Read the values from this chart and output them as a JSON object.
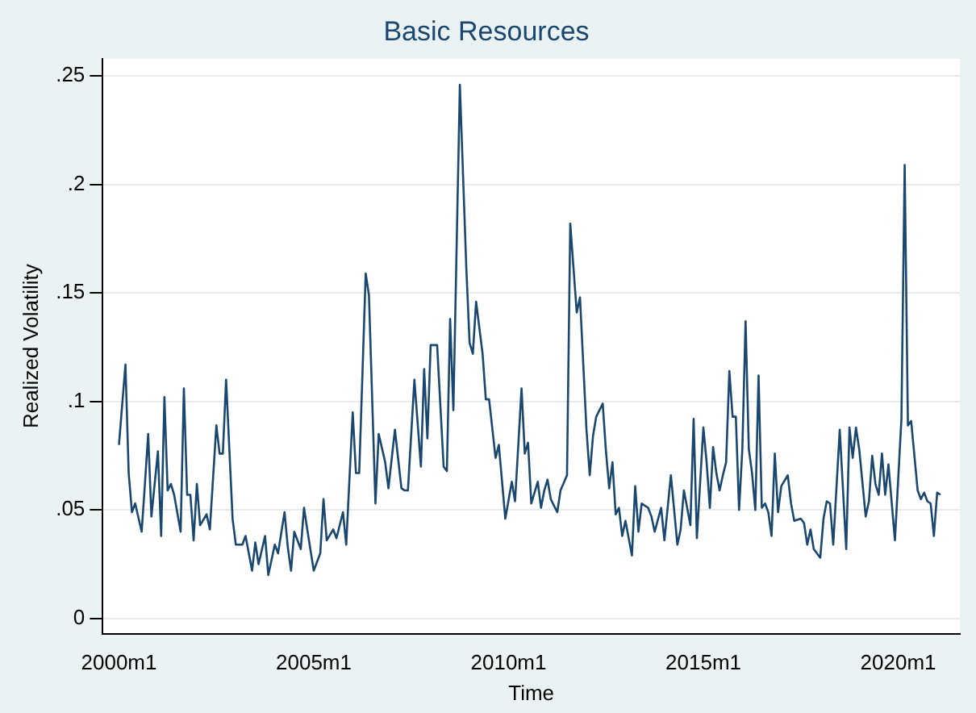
{
  "chart_data": {
    "type": "line",
    "title": "Basic Resources",
    "xlabel": "Time",
    "ylabel": "Realized Volatility",
    "grid": "y",
    "legend": false,
    "marker": "none",
    "line_style": "solid",
    "xlim": [
      "1999-08",
      "2021-08"
    ],
    "ylim": [
      -0.007,
      0.258
    ],
    "xticks": [
      {
        "value": "2000-01",
        "label": "2000m1"
      },
      {
        "value": "2005-01",
        "label": "2005m1"
      },
      {
        "value": "2010-01",
        "label": "2010m1"
      },
      {
        "value": "2015-01",
        "label": "2015m1"
      },
      {
        "value": "2020-01",
        "label": "2020m1"
      }
    ],
    "yticks": [
      0,
      {
        "value": 0.05,
        "label": ".05"
      },
      {
        "value": 0.1,
        "label": ".1"
      },
      {
        "value": 0.15,
        "label": ".15"
      },
      {
        "value": 0.2,
        "label": ".2"
      },
      {
        "value": 0.25,
        "label": ".25"
      }
    ],
    "x": [
      "2000-01",
      "2000-03",
      "2000-04",
      "2000-05",
      "2000-06",
      "2000-08",
      "2000-09",
      "2000-10",
      "2000-11",
      "2001-01",
      "2001-02",
      "2001-03",
      "2001-04",
      "2001-05",
      "2001-06",
      "2001-08",
      "2001-09",
      "2001-10",
      "2001-11",
      "2001-12",
      "2002-01",
      "2002-02",
      "2002-04",
      "2002-05",
      "2002-07",
      "2002-08",
      "2002-09",
      "2002-10",
      "2002-12",
      "2003-01",
      "2003-03",
      "2003-04",
      "2003-06",
      "2003-07",
      "2003-08",
      "2003-10",
      "2003-11",
      "2004-01",
      "2004-02",
      "2004-04",
      "2004-05",
      "2004-06",
      "2004-07",
      "2004-09",
      "2004-10",
      "2004-11",
      "2005-01",
      "2005-03",
      "2005-04",
      "2005-05",
      "2005-07",
      "2005-08",
      "2005-10",
      "2005-11",
      "2006-01",
      "2006-02",
      "2006-03",
      "2006-05",
      "2006-06",
      "2006-08",
      "2006-09",
      "2006-11",
      "2006-12",
      "2007-02",
      "2007-04",
      "2007-05",
      "2007-06",
      "2007-08",
      "2007-10",
      "2007-11",
      "2007-12",
      "2008-01",
      "2008-03",
      "2008-05",
      "2008-06",
      "2008-07",
      "2008-08",
      "2008-10",
      "2008-12",
      "2009-01",
      "2009-02",
      "2009-03",
      "2009-05",
      "2009-06",
      "2009-07",
      "2009-09",
      "2009-10",
      "2009-12",
      "2010-02",
      "2010-03",
      "2010-05",
      "2010-06",
      "2010-07",
      "2010-08",
      "2010-10",
      "2010-11",
      "2010-12",
      "2011-01",
      "2011-02",
      "2011-04",
      "2011-05",
      "2011-07",
      "2011-08",
      "2011-10",
      "2011-11",
      "2012-01",
      "2012-02",
      "2012-03",
      "2012-04",
      "2012-06",
      "2012-07",
      "2012-08",
      "2012-09",
      "2012-10",
      "2012-11",
      "2012-12",
      "2013-01",
      "2013-03",
      "2013-04",
      "2013-05",
      "2013-06",
      "2013-08",
      "2013-09",
      "2013-10",
      "2013-12",
      "2014-01",
      "2014-02",
      "2014-03",
      "2014-05",
      "2014-06",
      "2014-07",
      "2014-09",
      "2014-10",
      "2014-11",
      "2015-01",
      "2015-02",
      "2015-03",
      "2015-04",
      "2015-05",
      "2015-06",
      "2015-07",
      "2015-08",
      "2015-09",
      "2015-10",
      "2015-11",
      "2015-12",
      "2016-01",
      "2016-02",
      "2016-03",
      "2016-04",
      "2016-05",
      "2016-06",
      "2016-07",
      "2016-08",
      "2016-09",
      "2016-10",
      "2016-11",
      "2016-12",
      "2017-01",
      "2017-03",
      "2017-04",
      "2017-05",
      "2017-07",
      "2017-08",
      "2017-09",
      "2017-10",
      "2017-11",
      "2018-01",
      "2018-02",
      "2018-03",
      "2018-04",
      "2018-05",
      "2018-07",
      "2018-09",
      "2018-10",
      "2018-11",
      "2018-12",
      "2019-01",
      "2019-03",
      "2019-04",
      "2019-05",
      "2019-06",
      "2019-07",
      "2019-08",
      "2019-09",
      "2019-10",
      "2019-12",
      "2020-02",
      "2020-03",
      "2020-04",
      "2020-05",
      "2020-07",
      "2020-08",
      "2020-09",
      "2020-10",
      "2020-11",
      "2020-12",
      "2021-01",
      "2021-02"
    ],
    "series": [
      {
        "color": "#1a476f",
        "values": [
          0.08,
          0.117,
          0.067,
          0.049,
          0.053,
          0.04,
          0.062,
          0.085,
          0.047,
          0.077,
          0.038,
          0.102,
          0.059,
          0.062,
          0.057,
          0.04,
          0.106,
          0.057,
          0.057,
          0.036,
          0.062,
          0.043,
          0.048,
          0.041,
          0.089,
          0.076,
          0.076,
          0.11,
          0.046,
          0.034,
          0.034,
          0.038,
          0.022,
          0.035,
          0.025,
          0.038,
          0.02,
          0.034,
          0.03,
          0.049,
          0.033,
          0.022,
          0.04,
          0.032,
          0.051,
          0.041,
          0.022,
          0.03,
          0.055,
          0.036,
          0.041,
          0.037,
          0.049,
          0.034,
          0.095,
          0.067,
          0.067,
          0.159,
          0.149,
          0.053,
          0.085,
          0.072,
          0.06,
          0.087,
          0.06,
          0.059,
          0.059,
          0.11,
          0.07,
          0.115,
          0.083,
          0.126,
          0.126,
          0.07,
          0.068,
          0.138,
          0.096,
          0.246,
          0.161,
          0.127,
          0.122,
          0.146,
          0.122,
          0.101,
          0.101,
          0.074,
          0.08,
          0.046,
          0.063,
          0.054,
          0.106,
          0.076,
          0.081,
          0.053,
          0.063,
          0.051,
          0.059,
          0.064,
          0.055,
          0.049,
          0.059,
          0.066,
          0.182,
          0.141,
          0.148,
          0.087,
          0.066,
          0.084,
          0.093,
          0.099,
          0.077,
          0.06,
          0.072,
          0.048,
          0.051,
          0.038,
          0.045,
          0.029,
          0.061,
          0.04,
          0.053,
          0.051,
          0.047,
          0.04,
          0.051,
          0.036,
          0.051,
          0.066,
          0.034,
          0.041,
          0.059,
          0.043,
          0.092,
          0.037,
          0.088,
          0.072,
          0.051,
          0.079,
          0.067,
          0.059,
          0.066,
          0.072,
          0.114,
          0.093,
          0.093,
          0.05,
          0.078,
          0.137,
          0.078,
          0.067,
          0.05,
          0.112,
          0.051,
          0.053,
          0.049,
          0.038,
          0.076,
          0.049,
          0.061,
          0.066,
          0.053,
          0.045,
          0.046,
          0.044,
          0.034,
          0.041,
          0.032,
          0.028,
          0.046,
          0.054,
          0.053,
          0.034,
          0.087,
          0.032,
          0.088,
          0.074,
          0.088,
          0.078,
          0.047,
          0.054,
          0.075,
          0.062,
          0.057,
          0.076,
          0.057,
          0.071,
          0.036,
          0.092,
          0.209,
          0.089,
          0.091,
          0.059,
          0.055,
          0.058,
          0.054,
          0.053,
          0.038,
          0.058,
          0.057
        ]
      }
    ]
  }
}
